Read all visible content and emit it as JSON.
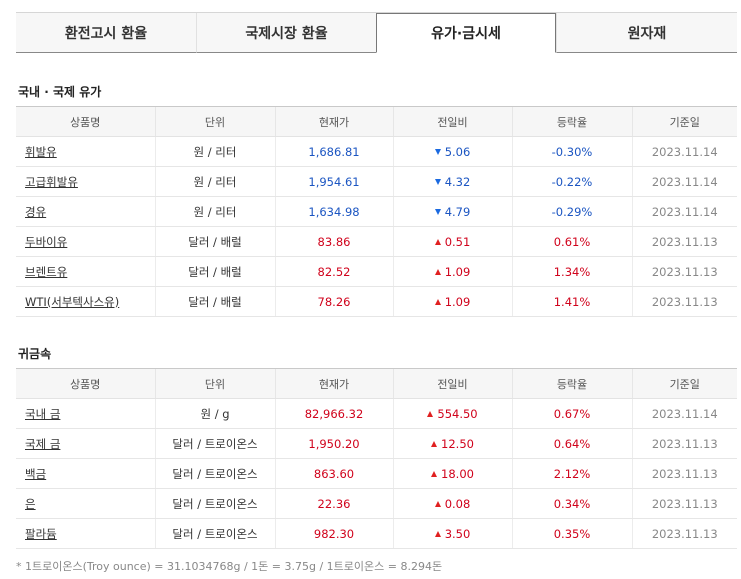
{
  "tabs": [
    {
      "label": "환전고시 환율",
      "active": false
    },
    {
      "label": "국제시장 환율",
      "active": false
    },
    {
      "label": "유가·금시세",
      "active": true
    },
    {
      "label": "원자재",
      "active": false
    }
  ],
  "oil": {
    "title": "국내 · 국제 유가",
    "headers": [
      "상품명",
      "단위",
      "현재가",
      "전일비",
      "등락율",
      "기준일"
    ],
    "rows": [
      {
        "name": "휘발유",
        "unit": "원 / 리터",
        "price": "1,686.81",
        "change": "5.06",
        "rate": "-0.30%",
        "date": "2023.11.14",
        "dir": "down"
      },
      {
        "name": "고급휘발유",
        "unit": "원 / 리터",
        "price": "1,954.61",
        "change": "4.32",
        "rate": "-0.22%",
        "date": "2023.11.14",
        "dir": "down"
      },
      {
        "name": "경유",
        "unit": "원 / 리터",
        "price": "1,634.98",
        "change": "4.79",
        "rate": "-0.29%",
        "date": "2023.11.14",
        "dir": "down"
      },
      {
        "name": "두바이유",
        "unit": "달러 / 배럴",
        "price": "83.86",
        "change": "0.51",
        "rate": "0.61%",
        "date": "2023.11.13",
        "dir": "up"
      },
      {
        "name": "브렌트유",
        "unit": "달러 / 배럴",
        "price": "82.52",
        "change": "1.09",
        "rate": "1.34%",
        "date": "2023.11.13",
        "dir": "up"
      },
      {
        "name": "WTI(서부텍사스유)",
        "unit": "달러 / 배럴",
        "price": "78.26",
        "change": "1.09",
        "rate": "1.41%",
        "date": "2023.11.13",
        "dir": "up"
      }
    ]
  },
  "metal": {
    "title": "귀금속",
    "headers": [
      "상품명",
      "단위",
      "현재가",
      "전일비",
      "등락율",
      "기준일"
    ],
    "rows": [
      {
        "name": "국내 금",
        "unit": "원 / g",
        "price": "82,966.32",
        "change": "554.50",
        "rate": "0.67%",
        "date": "2023.11.14",
        "dir": "up"
      },
      {
        "name": "국제 금",
        "unit": "달러 / 트로이온스",
        "price": "1,950.20",
        "change": "12.50",
        "rate": "0.64%",
        "date": "2023.11.13",
        "dir": "up"
      },
      {
        "name": "백금",
        "unit": "달러 / 트로이온스",
        "price": "863.60",
        "change": "18.00",
        "rate": "2.12%",
        "date": "2023.11.13",
        "dir": "up"
      },
      {
        "name": "은",
        "unit": "달러 / 트로이온스",
        "price": "22.36",
        "change": "0.08",
        "rate": "0.34%",
        "date": "2023.11.13",
        "dir": "up"
      },
      {
        "name": "팔라듐",
        "unit": "달러 / 트로이온스",
        "price": "982.30",
        "change": "3.50",
        "rate": "0.35%",
        "date": "2023.11.13",
        "dir": "up"
      }
    ]
  },
  "footnote": "* 1트로이온스(Troy ounce) = 31.1034768g / 1돈 = 3.75g / 1트로이온스 = 8.294돈",
  "colors": {
    "up": "#d0021b",
    "down": "#1b55c2"
  }
}
